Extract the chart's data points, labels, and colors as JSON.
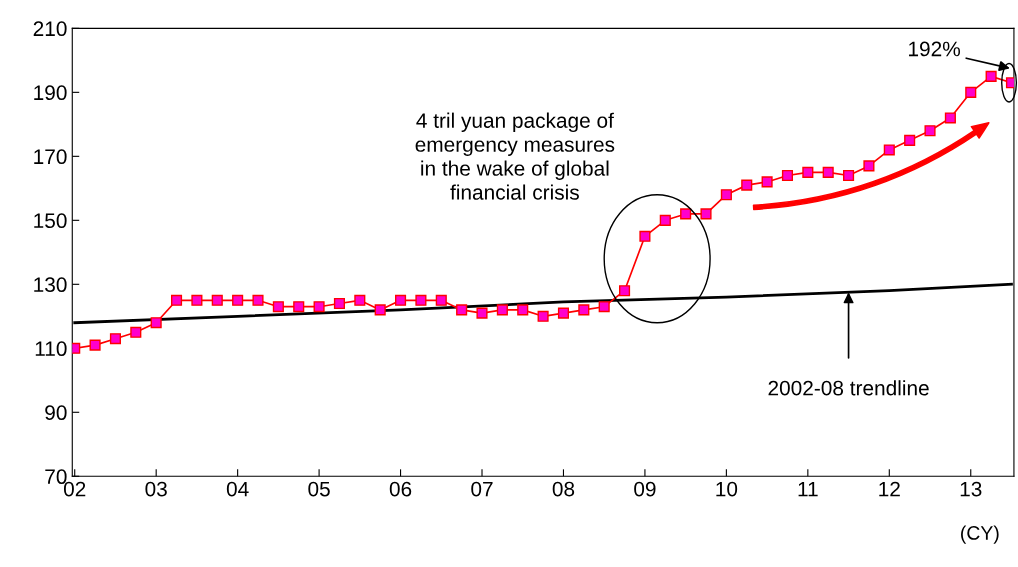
{
  "chart_data": {
    "type": "line",
    "xlabel": "(CY)",
    "xlim": [
      2001.97,
      2013.53
    ],
    "xticks": [
      {
        "value": 2002,
        "label": "02"
      },
      {
        "value": 2003,
        "label": "03"
      },
      {
        "value": 2004,
        "label": "04"
      },
      {
        "value": 2005,
        "label": "05"
      },
      {
        "value": 2006,
        "label": "06"
      },
      {
        "value": 2007,
        "label": "07"
      },
      {
        "value": 2008,
        "label": "08"
      },
      {
        "value": 2009,
        "label": "09"
      },
      {
        "value": 2010,
        "label": "10"
      },
      {
        "value": 2011,
        "label": "11"
      },
      {
        "value": 2012,
        "label": "12"
      },
      {
        "value": 2013,
        "label": "13"
      }
    ],
    "ylim": [
      70,
      210
    ],
    "yticks": [
      70,
      90,
      110,
      130,
      150,
      170,
      190,
      210
    ],
    "grid": false,
    "series": [
      {
        "color": "#000000",
        "marker": "none",
        "x": [
          2002,
          2004,
          2006,
          2008,
          2010,
          2012,
          2013.5
        ],
        "values": [
          118,
          120,
          122,
          124.5,
          126,
          128,
          130
        ]
      },
      {
        "color": "#ff0000",
        "marker": "square",
        "x": [
          2002,
          2002.25,
          2002.5,
          2002.75,
          2003,
          2003.25,
          2003.5,
          2003.75,
          2004,
          2004.25,
          2004.5,
          2004.75,
          2005,
          2005.25,
          2005.5,
          2005.75,
          2006,
          2006.25,
          2006.5,
          2006.75,
          2007,
          2007.25,
          2007.5,
          2007.75,
          2008,
          2008.25,
          2008.5,
          2008.75,
          2009,
          2009.25,
          2009.5,
          2009.75,
          2010,
          2010.25,
          2010.5,
          2010.75,
          2011,
          2011.25,
          2011.5,
          2011.75,
          2012,
          2012.25,
          2012.5,
          2012.75,
          2013,
          2013.25,
          2013.5
        ],
        "values": [
          110,
          111,
          113,
          115,
          118,
          125,
          125,
          125,
          125,
          125,
          123,
          123,
          123,
          124,
          125,
          122,
          125,
          125,
          125,
          122,
          121,
          122,
          122,
          120,
          121,
          122,
          123,
          128,
          145,
          150,
          152,
          152,
          158,
          161,
          162,
          164,
          165,
          165,
          164,
          167,
          172,
          175,
          178,
          182,
          190,
          195,
          193
        ]
      }
    ],
    "annotations": [
      "4 tril yuan package of\nemergency measures\nin the wake of global\nfinancial crisis",
      {
        "text": "192%",
        "x": 2013.5,
        "y": 193
      },
      {
        "text": "2002-08 trendline",
        "x": 2011.5,
        "y": 127.5
      }
    ]
  }
}
